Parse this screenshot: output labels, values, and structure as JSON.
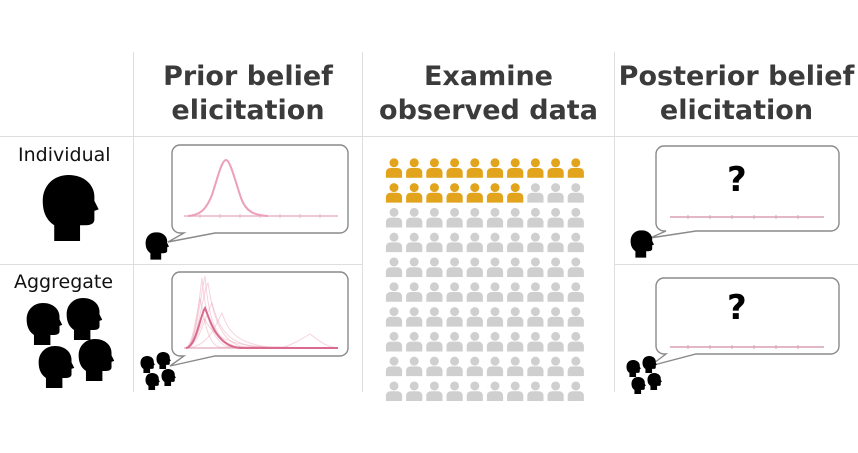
{
  "columns": {
    "prior": {
      "line1": "Prior belief",
      "line2": "elicitation"
    },
    "data": {
      "line1": "Examine",
      "line2": "observed data"
    },
    "posterior": {
      "line1": "Posterior belief",
      "line2": "elicitation"
    }
  },
  "rows": {
    "individual": "Individual",
    "aggregate": "Aggregate"
  },
  "posterior_placeholder": "?",
  "observed_data": {
    "highlighted": 17,
    "total": 100,
    "per_row": 10
  },
  "colors": {
    "highlight": "#e2a41c",
    "person_gray": "#cfcfcf",
    "curve": "#e9a3b8",
    "grid": "#dedede",
    "bubble_border": "#8a8a8a",
    "icon": "#000000"
  },
  "icons": {
    "person": "person-icon",
    "head": "head-silhouette-icon"
  }
}
